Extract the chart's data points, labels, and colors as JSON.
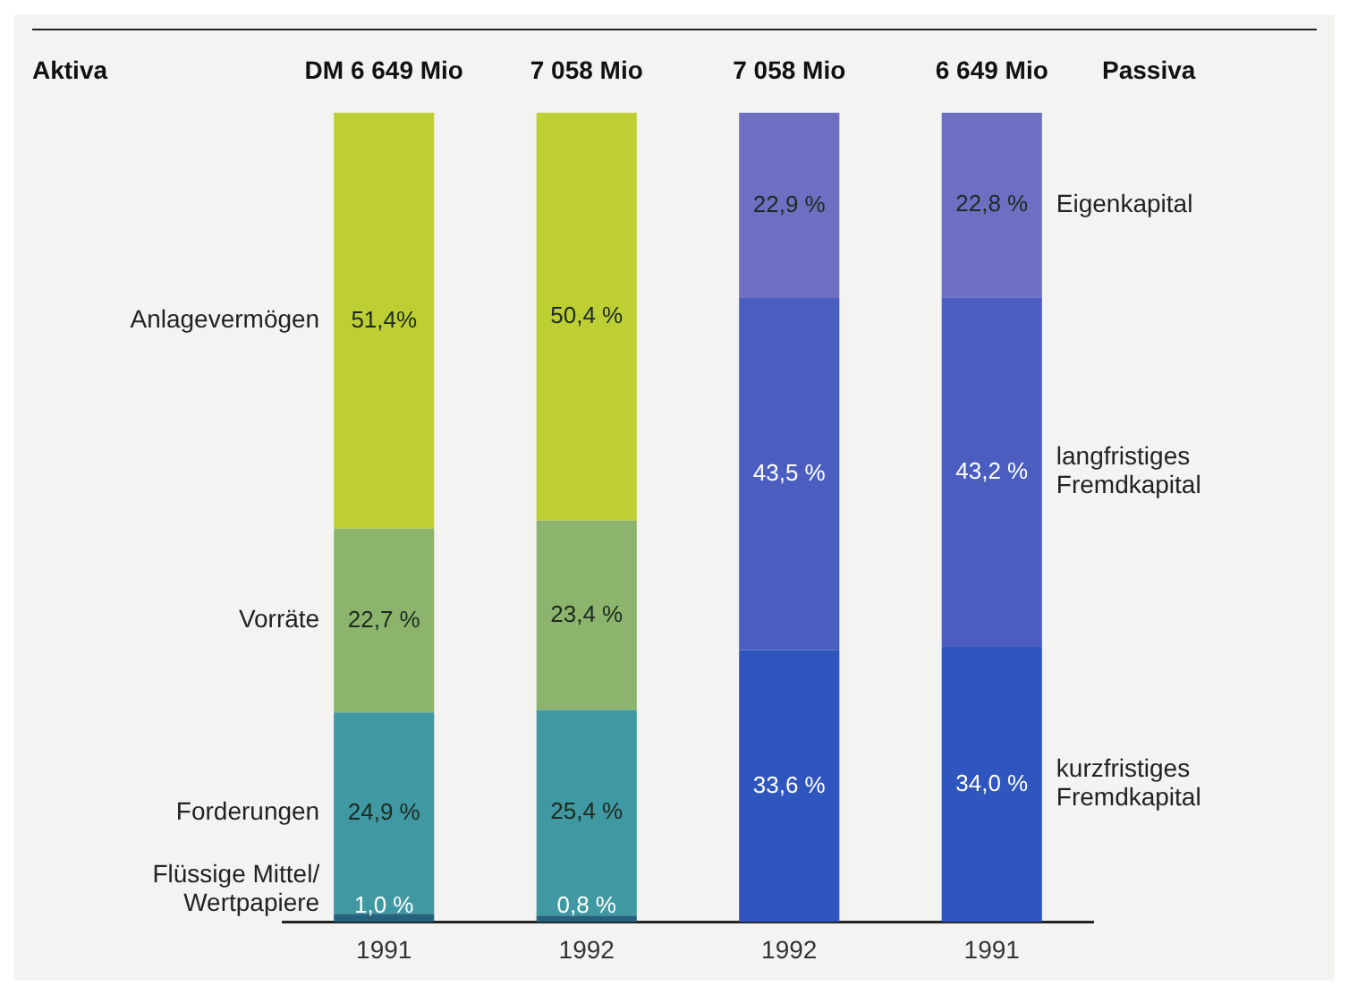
{
  "chart_data": {
    "type": "bar",
    "stacked": true,
    "categories": [
      "1991",
      "1992",
      "1992",
      "1991"
    ],
    "series": [
      {
        "name": "Flüssige Mittel/ Wertpapiere",
        "color": "#24627e",
        "values": [
          1.0,
          0.8,
          null,
          null
        ],
        "value_labels": [
          "1,0 %",
          "0,8 %",
          null,
          null
        ]
      },
      {
        "name": "Forderungen",
        "color": "#3f98a2",
        "values": [
          24.9,
          25.4,
          null,
          null
        ],
        "value_labels": [
          "24,9 %",
          "25,4 %",
          null,
          null
        ]
      },
      {
        "name": "Vorräte",
        "color": "#8cb46c",
        "values": [
          22.7,
          23.4,
          null,
          null
        ],
        "value_labels": [
          "22,7 %",
          "23,4 %",
          null,
          null
        ]
      },
      {
        "name": "Anlagevermögen",
        "color": "#bdcf33",
        "values": [
          51.4,
          50.4,
          null,
          null
        ],
        "value_labels": [
          "51,4%",
          "50,4 %",
          null,
          null
        ]
      },
      {
        "name": "kurzfristiges Fremdkapital",
        "color": "#2f55be",
        "values": [
          null,
          null,
          33.6,
          34.0
        ],
        "value_labels": [
          null,
          null,
          "33,6 %",
          "34,0 %"
        ]
      },
      {
        "name": "langfristiges Fremdkapital",
        "color": "#4b5ec0",
        "values": [
          null,
          null,
          43.5,
          43.2
        ],
        "value_labels": [
          null,
          null,
          "43,5 %",
          "43,2 %"
        ]
      },
      {
        "name": "Eigenkapital",
        "color": "#6d70c2",
        "values": [
          null,
          null,
          22.9,
          22.8
        ],
        "value_labels": [
          null,
          null,
          "22,9 %",
          "22,8 %"
        ]
      }
    ],
    "annotations": [
      "Aktiva",
      "DM 6 649 Mio",
      "7 058 Mio",
      "7 058 Mio",
      "6 649 Mio",
      "Passiva"
    ],
    "grid": false,
    "legend": false
  }
}
